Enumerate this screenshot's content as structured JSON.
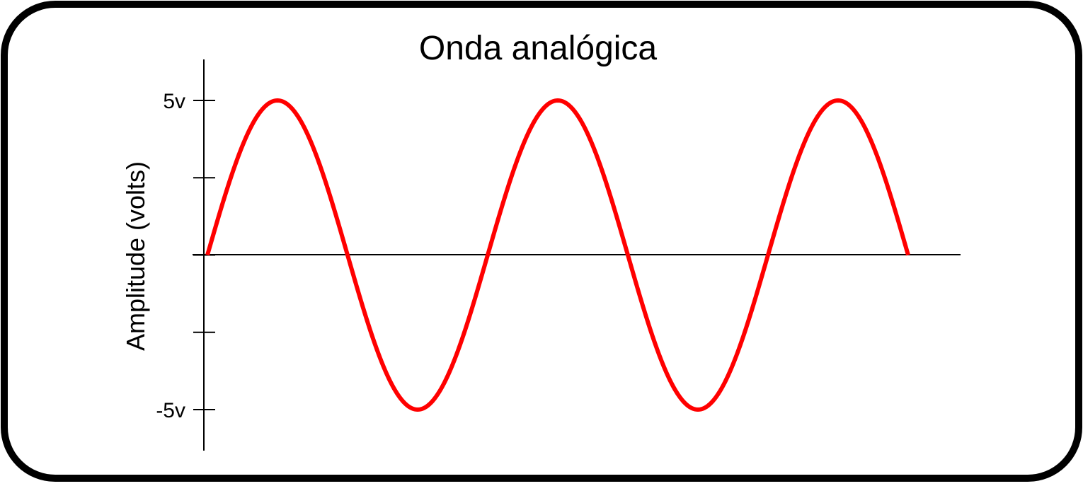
{
  "chart_data": {
    "type": "line",
    "title": "Onda analógica",
    "xlabel": "",
    "ylabel": "Amplitude (volts)",
    "ylim": [
      -5,
      5
    ],
    "y_ticks": [
      5,
      2.5,
      0,
      -2.5,
      -5
    ],
    "y_tick_labels": [
      {
        "value": 5,
        "label": "5v"
      },
      {
        "value": -5,
        "label": "-5v"
      }
    ],
    "x_ticks": [],
    "grid": false,
    "legend": "none",
    "series": [
      {
        "function": "sine",
        "amplitude": 5,
        "cycles": 2.5,
        "phase": 0,
        "color": "#ff0000"
      }
    ]
  },
  "colors": {
    "frame_border": "#000000",
    "axis": "#000000",
    "wave": "#ff0000"
  }
}
